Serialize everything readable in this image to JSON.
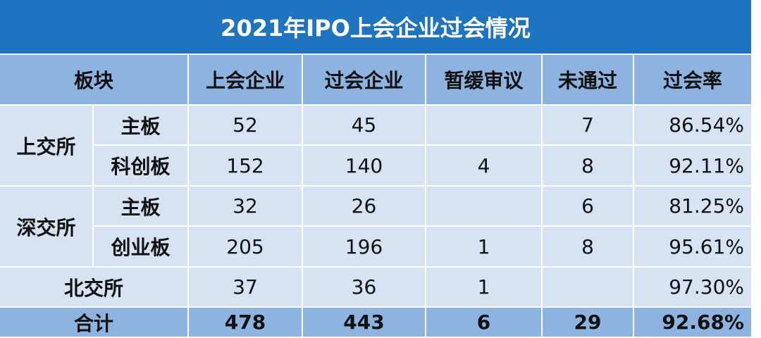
{
  "title": "2021年IPO上会企业过会情况",
  "header": [
    "板块",
    "上会企业",
    "过会企业",
    "暂缓审议",
    "未通过",
    "过会率"
  ],
  "groups": [
    {
      "exchange": "上交所",
      "rows": [
        {
          "board": "主板",
          "cells": [
            "52",
            "45",
            null,
            "7",
            "86.54%"
          ]
        },
        {
          "board": "科创板",
          "cells": [
            "152",
            "140",
            "4",
            "8",
            "92.11%"
          ]
        }
      ]
    },
    {
      "exchange": "深交所",
      "rows": [
        {
          "board": "主板",
          "cells": [
            "32",
            "26",
            null,
            "6",
            "81.25%"
          ]
        },
        {
          "board": "创业板",
          "cells": [
            "205",
            "196",
            "1",
            "8",
            "95.61%"
          ]
        }
      ]
    }
  ],
  "single": {
    "label": "北交所",
    "cells": [
      "37",
      "36",
      "1",
      null,
      "97.30%"
    ]
  },
  "total": {
    "label": "合计",
    "cells": [
      "478",
      "443",
      "6",
      "29",
      "92.68%"
    ]
  }
}
